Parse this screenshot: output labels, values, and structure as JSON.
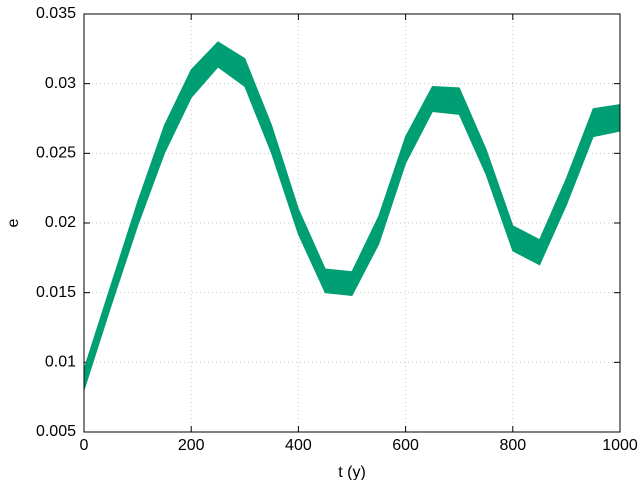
{
  "chart_data": {
    "type": "area",
    "x_label": "t (y)",
    "y_label": "e",
    "color": "#009e73",
    "x": [
      0,
      50,
      100,
      150,
      200,
      250,
      300,
      350,
      400,
      450,
      500,
      550,
      600,
      650,
      700,
      750,
      800,
      850,
      900,
      950,
      1000
    ],
    "upper": [
      0.0095,
      0.0155,
      0.0215,
      0.027,
      0.031,
      0.033,
      0.0318,
      0.027,
      0.021,
      0.0167,
      0.0165,
      0.0205,
      0.0262,
      0.0298,
      0.0297,
      0.0253,
      0.0198,
      0.0188,
      0.0232,
      0.0282,
      0.0285
    ],
    "lower": [
      0.008,
      0.014,
      0.0198,
      0.025,
      0.029,
      0.0312,
      0.0298,
      0.025,
      0.0192,
      0.015,
      0.0148,
      0.0185,
      0.0243,
      0.028,
      0.0278,
      0.0235,
      0.018,
      0.017,
      0.0213,
      0.0262,
      0.0266
    ],
    "xlim": [
      0,
      1000
    ],
    "xticks": [
      0,
      200,
      400,
      600,
      800,
      1000
    ],
    "ylim": [
      0.005,
      0.035
    ],
    "yticks": [
      0.005,
      0.01,
      0.015,
      0.02,
      0.025,
      0.03,
      0.035
    ],
    "grid": true
  }
}
